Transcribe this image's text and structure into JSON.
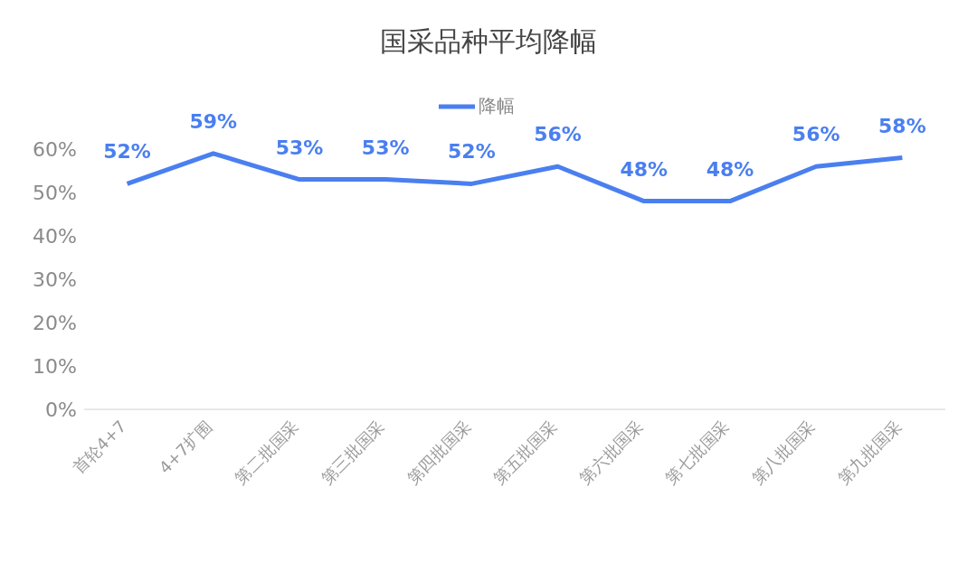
{
  "chart_data": {
    "type": "line",
    "title": "国采品种平均降幅",
    "categories": [
      "首轮4+7",
      "4+7扩围",
      "第二批国采",
      "第三批国采",
      "第四批国采",
      "第五批国采",
      "第六批国采",
      "第七批国采",
      "第八批国采",
      "第九批国采"
    ],
    "series": [
      {
        "name": "降幅",
        "color": "#4a7ff0",
        "values": [
          52,
          59,
          53,
          53,
          52,
          56,
          48,
          48,
          56,
          58
        ],
        "value_labels": [
          "52%",
          "59%",
          "53%",
          "53%",
          "52%",
          "56%",
          "48%",
          "48%",
          "56%",
          "58%"
        ]
      }
    ],
    "ylim": [
      0,
      60
    ],
    "yticks": [
      {
        "value": 0,
        "label": "0%"
      },
      {
        "value": 10,
        "label": "10%"
      },
      {
        "value": 20,
        "label": "20%"
      },
      {
        "value": 30,
        "label": "30%"
      },
      {
        "value": 40,
        "label": "40%"
      },
      {
        "value": 50,
        "label": "50%"
      },
      {
        "value": 60,
        "label": "60%"
      }
    ],
    "grid": false,
    "legend": "top",
    "marker": "none",
    "line_style": "solid"
  }
}
